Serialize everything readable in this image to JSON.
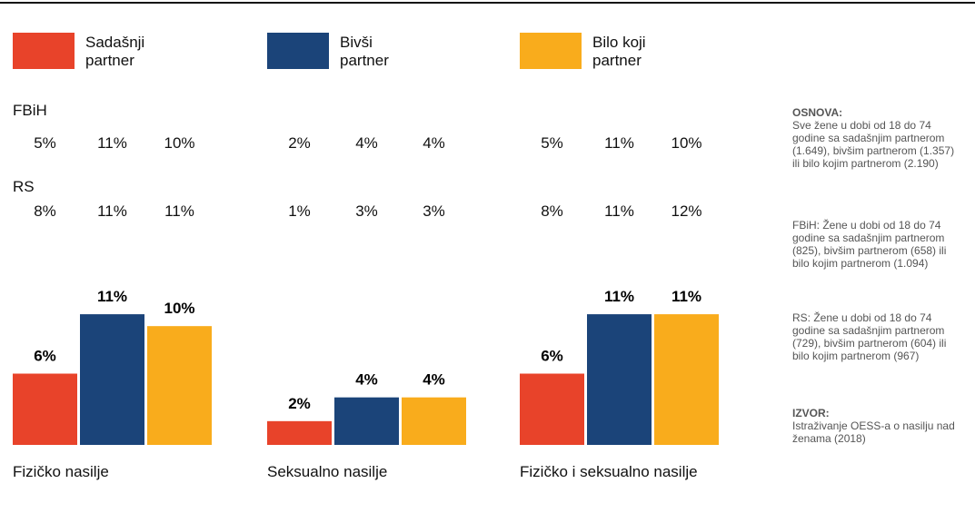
{
  "chart_data": {
    "type": "bar",
    "categories": [
      "Fizičko nasilje",
      "Seksualno nasilje",
      "Fizičko i seksualno nasilje"
    ],
    "series": [
      {
        "name": "Sadašnji partner",
        "color": "#e8432a",
        "values": [
          6,
          2,
          6
        ],
        "value_labels": [
          "6%",
          "2%",
          "6%"
        ]
      },
      {
        "name": "Bivši partner",
        "color": "#1b4479",
        "values": [
          11,
          4,
          11
        ],
        "value_labels": [
          "11%",
          "4%",
          "11%"
        ]
      },
      {
        "name": "Bilo koji partner",
        "color": "#f9ac1c",
        "values": [
          10,
          4,
          11
        ],
        "value_labels": [
          "10%",
          "4%",
          "11%"
        ]
      }
    ],
    "ylim": [
      0,
      12
    ]
  },
  "tables": [
    {
      "label": "FBiH",
      "groups": [
        [
          "5%",
          "11%",
          "10%"
        ],
        [
          "2%",
          "4%",
          "4%"
        ],
        [
          "5%",
          "11%",
          "10%"
        ]
      ]
    },
    {
      "label": "RS",
      "groups": [
        [
          "8%",
          "11%",
          "11%"
        ],
        [
          "1%",
          "3%",
          "3%"
        ],
        [
          "8%",
          "11%",
          "12%"
        ]
      ]
    }
  ],
  "notes": [
    {
      "heading": "OSNOVA:",
      "text": "Sve žene u dobi od 18 do 74 godine sa sadašnjim partnerom (1.649), bivšim partnerom (1.357) ili bilo kojim partnerom (2.190)"
    },
    {
      "text": "FBiH: Žene u dobi od 18 do 74 godine sa sadašnjim partnerom (825), bivšim partnerom (658) ili bilo kojim partnerom (1.094)"
    },
    {
      "text": "RS: Žene u dobi od 18 do 74 godine sa sadašnjim partnerom (729), bivšim partnerom (604) ili bilo kojim partnerom (967)"
    },
    {
      "heading": "IZVOR:",
      "text": "Istraživanje OESS-a o nasilju nad ženama (2018)"
    }
  ]
}
